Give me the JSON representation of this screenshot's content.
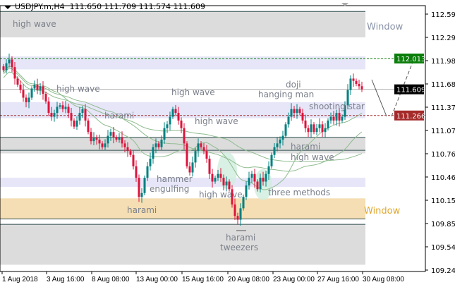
{
  "header": {
    "symbol": "USDJPY.m,H4",
    "ohlc": "111.650 111.709 111.574 111.609"
  },
  "chart_data": {
    "type": "candlestick",
    "symbol": "USDJPY.m",
    "timeframe": "H4",
    "ylim": [
      109.24,
      112.65
    ],
    "y_ticks": [
      "112.595",
      "112.290",
      "111.985",
      "111.680",
      "111.375",
      "111.070",
      "110.765",
      "110.460",
      "110.155",
      "109.850",
      "109.545",
      "109.240"
    ],
    "x_ticks": [
      "1 Aug 2018",
      "3 Aug 16:00",
      "8 Aug 08:00",
      "13 Aug 00:00",
      "15 Aug 16:00",
      "20 Aug 08:00",
      "23 Aug 00:00",
      "27 Aug 16:00",
      "30 Aug 08:00"
    ],
    "closes": [
      111.86,
      111.95,
      112.0,
      111.9,
      111.75,
      111.67,
      111.6,
      111.5,
      111.44,
      111.5,
      111.62,
      111.67,
      111.6,
      111.65,
      111.55,
      111.45,
      111.3,
      111.25,
      111.3,
      111.38,
      111.4,
      111.35,
      111.38,
      111.3,
      111.2,
      111.12,
      111.2,
      111.3,
      111.35,
      111.2,
      111.05,
      110.93,
      110.97,
      110.95,
      110.9,
      110.85,
      110.9,
      111.0,
      111.05,
      110.98,
      110.95,
      110.98,
      110.9,
      110.85,
      110.8,
      110.75,
      110.6,
      110.45,
      110.2,
      110.25,
      110.45,
      110.6,
      110.7,
      110.85,
      110.9,
      110.85,
      110.95,
      111.1,
      111.15,
      111.25,
      111.35,
      111.3,
      111.2,
      111.1,
      110.9,
      110.6,
      110.52,
      110.65,
      110.8,
      110.9,
      110.85,
      110.8,
      110.7,
      110.5,
      110.4,
      110.45,
      110.5,
      110.45,
      110.35,
      110.4,
      110.3,
      110.1,
      109.95,
      109.9,
      110.05,
      110.2,
      110.35,
      110.45,
      110.5,
      110.4,
      110.3,
      110.45,
      110.4,
      110.5,
      110.6,
      110.75,
      110.85,
      110.9,
      110.95,
      111.0,
      111.15,
      111.25,
      111.35,
      111.3,
      111.35,
      111.3,
      111.2,
      111.1,
      111.05,
      111.15,
      111.05,
      111.1,
      111.15,
      111.05,
      111.1,
      111.2,
      111.25,
      111.2,
      111.3,
      111.2,
      111.25,
      111.4,
      111.6,
      111.75,
      111.72,
      111.68,
      111.65,
      111.609
    ],
    "last_open": 111.65,
    "last_high": 111.709,
    "last_low": 111.574,
    "zones": [
      {
        "from": 112.29,
        "to": 112.63,
        "color": "#dcdcdc",
        "label": "Window",
        "label_color": "#8a94a8"
      },
      {
        "from": 111.87,
        "to": 112.04,
        "color": "#e6e6f8"
      },
      {
        "from": 111.23,
        "to": 111.44,
        "color": "#e6e6f8"
      },
      {
        "from": 110.77,
        "to": 110.98,
        "color": "#dcdcdc"
      },
      {
        "from": 110.33,
        "to": 110.45,
        "color": "#e6e6f8"
      },
      {
        "from": 109.91,
        "to": 110.18,
        "color": "#f5deb3",
        "label": "Window",
        "label_color": "#e0a830"
      },
      {
        "from": 109.31,
        "to": 109.84,
        "color": "#dcdcdc"
      }
    ],
    "levels": [
      {
        "price": 112.013,
        "label": "112.013",
        "color": "#0a7d0a",
        "style": "dashed"
      },
      {
        "price": 111.609,
        "label": "111.609",
        "color": "#000000",
        "style": "solid-gray"
      },
      {
        "price": 111.266,
        "label": "111.266",
        "color": "#a52a2a",
        "style": "dashed"
      }
    ],
    "pattern_labels": [
      "high wave",
      "high wave",
      "high wave",
      "harami",
      "high wave",
      "doji",
      "hanging man",
      "shooting star",
      "harami",
      "high wave",
      "hammer",
      "engulfing",
      "high wave",
      "three methods",
      "harami",
      "harami",
      "tweezers",
      "Window",
      "Window"
    ],
    "colors": {
      "bull": "#008080",
      "bear": "#dc143c",
      "ma": "#8fbc8f"
    }
  }
}
